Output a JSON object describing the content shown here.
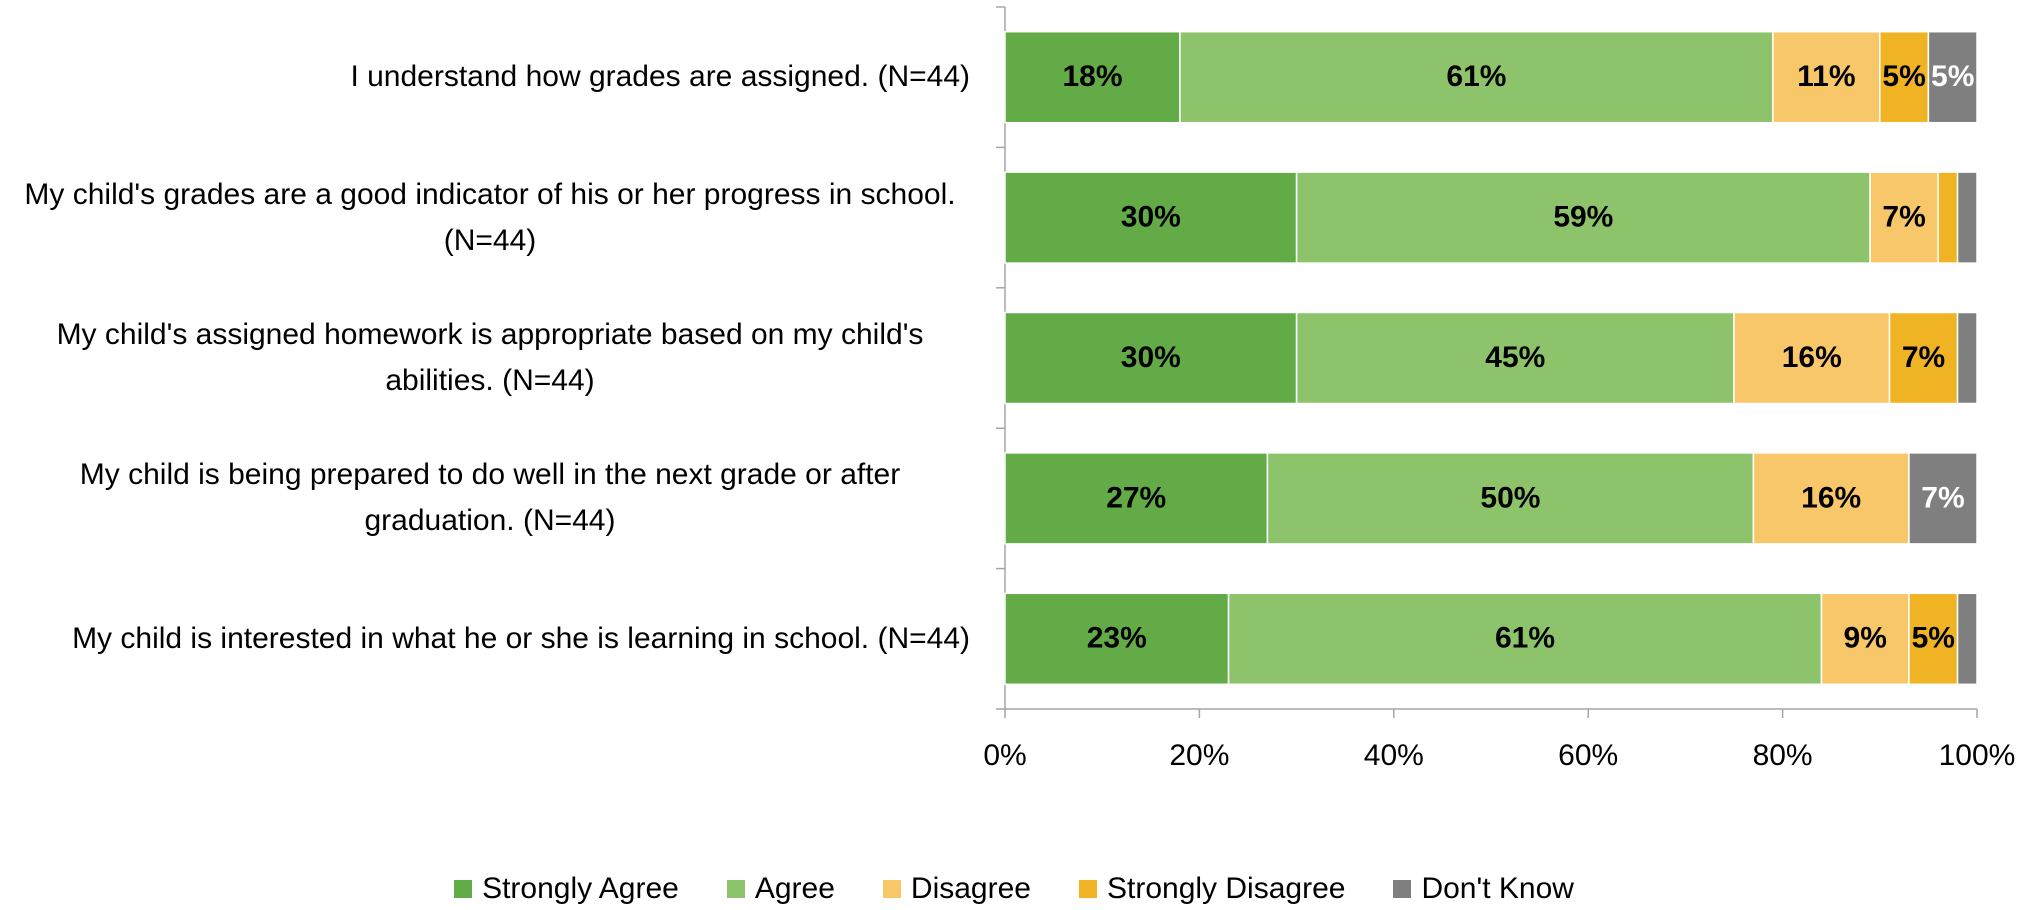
{
  "chart_data": {
    "type": "stacked_bar_horizontal",
    "categories": [
      "I understand how grades are assigned. (N=44)",
      "My child's grades are a good indicator of his or her progress in school. (N=44)",
      "My child's assigned homework is appropriate based on my child's abilities. (N=44)",
      "My child is being prepared to do well in the next grade or after graduation. (N=44)",
      "My child is interested in what he or she is learning in school. (N=44)"
    ],
    "series": [
      {
        "name": "Strongly Agree",
        "color": "#62ab46",
        "label_color": "#000000",
        "values": [
          18,
          30,
          30,
          27,
          23
        ],
        "value_labels": [
          "18%",
          "30%",
          "30%",
          "27%",
          "23%"
        ]
      },
      {
        "name": "Agree",
        "color": "#8dc46b",
        "label_color": "#000000",
        "values": [
          61,
          59,
          45,
          50,
          61
        ],
        "value_labels": [
          "61%",
          "59%",
          "45%",
          "50%",
          "61%"
        ]
      },
      {
        "name": "Disagree",
        "color": "#f8c76a",
        "label_color": "#000000",
        "values": [
          11,
          7,
          16,
          16,
          9
        ],
        "value_labels": [
          "11%",
          "7%",
          "16%",
          "16%",
          "9%"
        ]
      },
      {
        "name": "Strongly Disagree",
        "color": "#f0b323",
        "label_color": "#000000",
        "values": [
          5,
          2,
          7,
          0,
          5
        ],
        "value_labels": [
          "5%",
          null,
          "7%",
          null,
          "5%"
        ]
      },
      {
        "name": "Don't Know",
        "color": "#7f7f7f",
        "label_color": "#ffffff",
        "values": [
          5,
          2,
          2,
          7,
          2
        ],
        "value_labels": [
          "5%",
          null,
          null,
          "7%",
          null
        ]
      }
    ],
    "xlim": [
      0,
      100
    ],
    "xticks": [
      {
        "value": 0,
        "label": "0%"
      },
      {
        "value": 20,
        "label": "20%"
      },
      {
        "value": 40,
        "label": "40%"
      },
      {
        "value": 60,
        "label": "60%"
      },
      {
        "value": 80,
        "label": "80%"
      },
      {
        "value": 100,
        "label": "100%"
      }
    ],
    "grid": false,
    "legend": "bottom"
  }
}
